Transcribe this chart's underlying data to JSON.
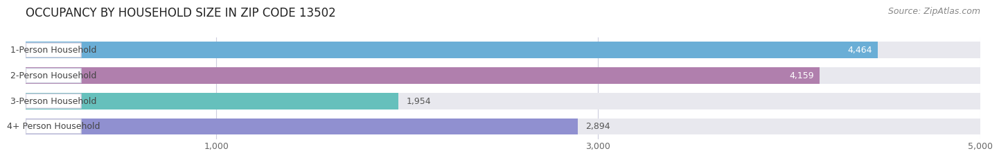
{
  "title": "OCCUPANCY BY HOUSEHOLD SIZE IN ZIP CODE 13502",
  "source": "Source: ZipAtlas.com",
  "categories": [
    "1-Person Household",
    "2-Person Household",
    "3-Person Household",
    "4+ Person Household"
  ],
  "values": [
    4464,
    4159,
    1954,
    2894
  ],
  "bar_colors": [
    "#6aaed6",
    "#b07fad",
    "#66c0bc",
    "#9090d0"
  ],
  "value_labels": [
    "4,464",
    "4,159",
    "1,954",
    "2,894"
  ],
  "value_label_inside": [
    true,
    true,
    false,
    false
  ],
  "xlim": [
    0,
    5000
  ],
  "xticks": [
    1000,
    3000,
    5000
  ],
  "xtick_labels": [
    "1,000",
    "3,000",
    "5,000"
  ],
  "background_color": "#ffffff",
  "bar_bg_color": "#e8e8ee",
  "label_bg_color": "#ffffff",
  "title_fontsize": 12,
  "source_fontsize": 9,
  "bar_label_fontsize": 9,
  "val_label_fontsize": 9
}
